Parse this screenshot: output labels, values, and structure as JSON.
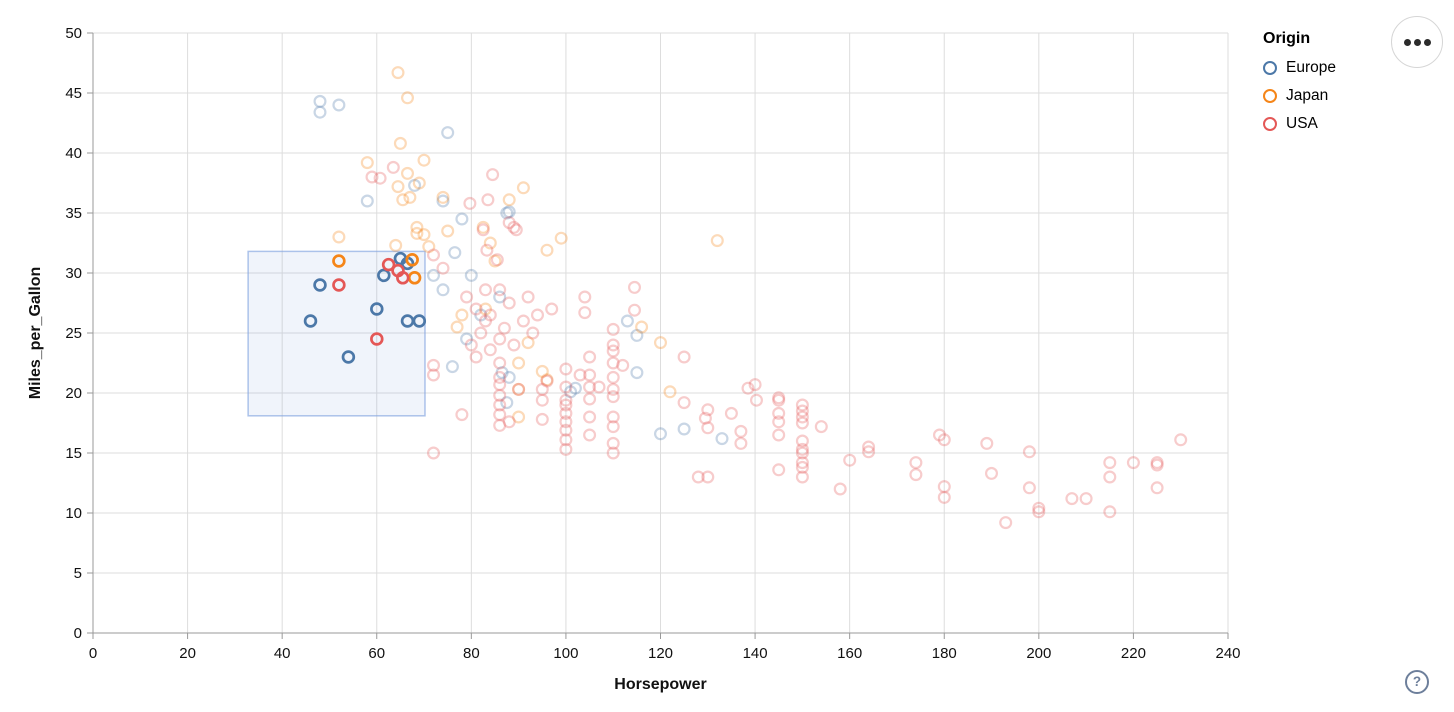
{
  "chart_data": {
    "type": "scatter",
    "xlabel": "Horsepower",
    "ylabel": "Miles_per_Gallon",
    "xlim": [
      0,
      240
    ],
    "ylim": [
      0,
      50
    ],
    "x_ticks": [
      0,
      20,
      40,
      60,
      80,
      100,
      120,
      140,
      160,
      180,
      200,
      220,
      240
    ],
    "y_ticks": [
      0,
      5,
      10,
      15,
      20,
      25,
      30,
      35,
      40,
      45,
      50
    ],
    "grid": true,
    "legend": {
      "title": "Origin",
      "position": "top-right",
      "entries": [
        {
          "label": "Europe",
          "color": "#4c78a8"
        },
        {
          "label": "Japan",
          "color": "#f58518"
        },
        {
          "label": "USA",
          "color": "#e45756"
        }
      ]
    },
    "brush": {
      "hp_min": 32.8,
      "hp_max": 70.2,
      "mpg_min": 18.1,
      "mpg_max": 31.8,
      "fill": "rgba(112,150,217,0.10)",
      "stroke": "rgba(130,165,225,0.65)"
    },
    "point_style": {
      "radius": 5.4,
      "stroke_width_selected": 2.7,
      "stroke_width_unselected": 2.2,
      "selected_opacity": 1.0,
      "unselected_opacity": 0.3
    },
    "series": [
      {
        "name": "Europe",
        "color": "#4c78a8",
        "points": [
          [
            48,
            29
          ],
          [
            46,
            26
          ],
          [
            60,
            27
          ],
          [
            54,
            23
          ],
          [
            66.5,
            26
          ],
          [
            69,
            26
          ],
          [
            61.5,
            29.8
          ],
          [
            66.5,
            30.8
          ],
          [
            65,
            31.2
          ],
          [
            48,
            44.3
          ],
          [
            48,
            43.4
          ],
          [
            52,
            44
          ],
          [
            75,
            41.7
          ],
          [
            68,
            37.3
          ],
          [
            58,
            36
          ],
          [
            74,
            36
          ],
          [
            78,
            34.5
          ],
          [
            88,
            35.1
          ],
          [
            87.5,
            35
          ],
          [
            72,
            29.8
          ],
          [
            74,
            28.6
          ],
          [
            76.5,
            31.7
          ],
          [
            80,
            29.8
          ],
          [
            86,
            28
          ],
          [
            76,
            22.2
          ],
          [
            86.5,
            21.7
          ],
          [
            88,
            21.3
          ],
          [
            87.5,
            19.2
          ],
          [
            102,
            20.4
          ],
          [
            101,
            20.1
          ],
          [
            113,
            26
          ],
          [
            115,
            21.7
          ],
          [
            115,
            24.8
          ],
          [
            125,
            17
          ],
          [
            133,
            16.2
          ],
          [
            120,
            16.6
          ],
          [
            82,
            26.5
          ],
          [
            79,
            24.5
          ]
        ]
      },
      {
        "name": "Japan",
        "color": "#f58518",
        "points": [
          [
            52,
            31
          ],
          [
            67.5,
            31.1
          ],
          [
            68,
            29.6
          ],
          [
            64.5,
            46.7
          ],
          [
            66.5,
            44.6
          ],
          [
            65,
            40.8
          ],
          [
            70,
            39.4
          ],
          [
            58,
            39.2
          ],
          [
            66.5,
            38.3
          ],
          [
            64.5,
            37.2
          ],
          [
            69,
            37.5
          ],
          [
            65.5,
            36.1
          ],
          [
            67,
            36.3
          ],
          [
            74,
            36.3
          ],
          [
            91,
            37.1
          ],
          [
            88,
            36.1
          ],
          [
            82.5,
            33.8
          ],
          [
            84,
            32.5
          ],
          [
            68.5,
            33.8
          ],
          [
            68.5,
            33.3
          ],
          [
            99,
            32.9
          ],
          [
            96,
            31.9
          ],
          [
            132,
            32.7
          ],
          [
            120,
            24.2
          ],
          [
            122,
            20.1
          ],
          [
            90,
            22.5
          ],
          [
            90,
            20.3
          ],
          [
            90,
            18
          ],
          [
            95,
            21.8
          ],
          [
            96,
            21.1
          ],
          [
            85,
            31
          ],
          [
            116,
            25.5
          ],
          [
            77,
            25.5
          ],
          [
            78,
            26.5
          ],
          [
            83,
            27
          ],
          [
            92,
            24.2
          ],
          [
            75,
            33.5
          ],
          [
            71,
            32.2
          ],
          [
            64,
            32.3
          ],
          [
            52,
            33
          ],
          [
            70,
            33.2
          ]
        ]
      },
      {
        "name": "USA",
        "color": "#e45756",
        "points": [
          [
            52,
            29
          ],
          [
            62.5,
            30.7
          ],
          [
            64.5,
            30.2
          ],
          [
            65.5,
            29.6
          ],
          [
            60,
            24.5
          ],
          [
            63.5,
            38.8
          ],
          [
            59,
            38
          ],
          [
            60.7,
            37.9
          ],
          [
            84.5,
            38.2
          ],
          [
            83.5,
            36.1
          ],
          [
            79.7,
            35.8
          ],
          [
            89,
            33.8
          ],
          [
            82.5,
            33.6
          ],
          [
            88,
            34.2
          ],
          [
            89.5,
            33.6
          ],
          [
            85.5,
            31.1
          ],
          [
            83.3,
            31.9
          ],
          [
            72,
            31.5
          ],
          [
            104,
            28
          ],
          [
            104,
            26.7
          ],
          [
            114.5,
            28.8
          ],
          [
            114.5,
            26.9
          ],
          [
            112,
            22.3
          ],
          [
            125,
            23
          ],
          [
            125,
            19.2
          ],
          [
            129.5,
            17.9
          ],
          [
            130,
            18.6
          ],
          [
            130,
            17.1
          ],
          [
            135,
            18.3
          ],
          [
            137,
            16.8
          ],
          [
            137,
            15.8
          ],
          [
            138.5,
            20.4
          ],
          [
            140,
            20.7
          ],
          [
            140.3,
            19.4
          ],
          [
            145,
            19.4
          ],
          [
            145,
            17.6
          ],
          [
            145,
            19.6
          ],
          [
            145,
            13.6
          ],
          [
            145,
            16.5
          ],
          [
            145,
            18.3
          ],
          [
            128,
            13
          ],
          [
            130,
            13
          ],
          [
            150,
            19
          ],
          [
            150,
            18.5
          ],
          [
            150,
            18
          ],
          [
            150,
            17.5
          ],
          [
            150,
            16
          ],
          [
            150,
            15.3
          ],
          [
            150,
            15
          ],
          [
            150,
            14.2
          ],
          [
            150,
            13.8
          ],
          [
            150,
            13
          ],
          [
            154,
            17.2
          ],
          [
            158,
            12
          ],
          [
            160,
            14.4
          ],
          [
            164,
            15.5
          ],
          [
            164,
            15.1
          ],
          [
            174,
            14.2
          ],
          [
            174,
            13.2
          ],
          [
            179,
            16.5
          ],
          [
            180,
            16.1
          ],
          [
            180,
            12.2
          ],
          [
            180,
            11.3
          ],
          [
            189,
            15.8
          ],
          [
            190,
            13.3
          ],
          [
            193,
            9.2
          ],
          [
            198,
            15.1
          ],
          [
            198,
            12.1
          ],
          [
            200,
            10.4
          ],
          [
            200,
            10.1
          ],
          [
            207,
            11.2
          ],
          [
            210,
            11.2
          ],
          [
            215,
            14.2
          ],
          [
            215,
            13
          ],
          [
            215,
            10.1
          ],
          [
            220,
            14.2
          ],
          [
            225,
            14.2
          ],
          [
            225,
            14
          ],
          [
            225,
            12.1
          ],
          [
            230,
            16.1
          ],
          [
            86,
            22.5
          ],
          [
            86,
            21.3
          ],
          [
            86,
            20.7
          ],
          [
            86,
            19.8
          ],
          [
            86,
            19
          ],
          [
            86,
            18.2
          ],
          [
            86,
            17.3
          ],
          [
            90,
            20.3
          ],
          [
            88,
            17.6
          ],
          [
            95,
            20.3
          ],
          [
            95,
            19.4
          ],
          [
            95,
            17.8
          ],
          [
            96,
            21
          ],
          [
            100,
            19.4
          ],
          [
            100,
            19
          ],
          [
            100,
            18.3
          ],
          [
            100,
            17.6
          ],
          [
            100,
            16.9
          ],
          [
            100,
            16.1
          ],
          [
            100,
            15.3
          ],
          [
            100,
            22
          ],
          [
            100,
            20.5
          ],
          [
            105,
            23
          ],
          [
            105,
            21.5
          ],
          [
            105,
            20.5
          ],
          [
            105,
            19.5
          ],
          [
            105,
            18
          ],
          [
            105,
            16.5
          ],
          [
            103,
            21.5
          ],
          [
            110,
            25.3
          ],
          [
            110,
            24
          ],
          [
            110,
            23.5
          ],
          [
            110,
            22.5
          ],
          [
            110,
            21.3
          ],
          [
            110,
            20.3
          ],
          [
            110,
            19.7
          ],
          [
            110,
            18
          ],
          [
            110,
            17.2
          ],
          [
            110,
            15.8
          ],
          [
            110,
            15
          ],
          [
            72,
            22.3
          ],
          [
            72,
            21.5
          ],
          [
            78,
            18.2
          ],
          [
            72,
            15
          ],
          [
            79,
            28
          ],
          [
            81,
            27
          ],
          [
            83,
            28.6
          ],
          [
            84,
            26.5
          ],
          [
            87,
            25.4
          ],
          [
            89,
            24
          ],
          [
            91,
            26
          ],
          [
            93,
            25
          ],
          [
            88,
            27.5
          ],
          [
            74,
            30.4
          ],
          [
            80,
            24
          ],
          [
            82,
            25
          ],
          [
            84,
            23.6
          ],
          [
            86,
            24.5
          ],
          [
            83,
            26
          ],
          [
            81,
            23
          ],
          [
            86,
            28.6
          ],
          [
            92,
            28
          ],
          [
            94,
            26.5
          ],
          [
            97,
            27
          ],
          [
            107,
            20.5
          ]
        ]
      }
    ],
    "axis_style": {
      "grid_color": "#dddddd",
      "domain_color": "#999999",
      "tick_color": "#999999",
      "label_color": "#111111"
    }
  },
  "controls": {
    "menu_button": "vega actions menu",
    "help_label": "?"
  }
}
